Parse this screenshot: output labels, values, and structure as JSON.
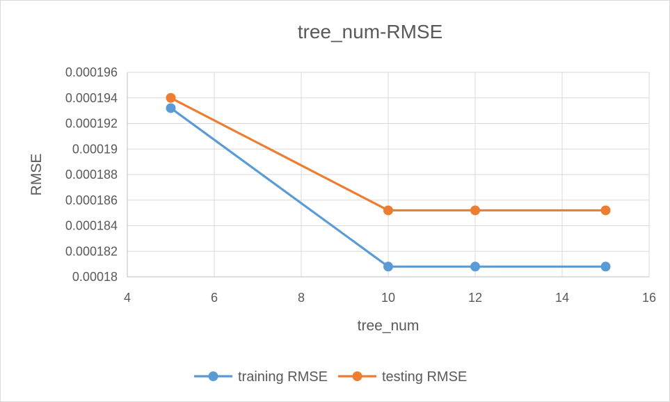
{
  "chart_data": {
    "type": "line",
    "title": "tree_num-RMSE",
    "xlabel": "tree_num",
    "ylabel": "RMSE",
    "xlim": [
      4,
      16
    ],
    "ylim": [
      0.00018,
      0.000196
    ],
    "x_ticks": [
      4,
      6,
      8,
      10,
      12,
      14,
      16
    ],
    "y_ticks": [
      "0.00018",
      "0.000182",
      "0.000184",
      "0.000186",
      "0.000188",
      "0.00019",
      "0.000192",
      "0.000194",
      "0.000196"
    ],
    "grid": true,
    "legend_position": "bottom",
    "series": [
      {
        "name": "training RMSE",
        "color": "#5b9bd5",
        "x": [
          5,
          10,
          12,
          15
        ],
        "y": [
          0.0001932,
          0.0001808,
          0.0001808,
          0.0001808
        ]
      },
      {
        "name": "testing RMSE",
        "color": "#ed7d31",
        "x": [
          5,
          10,
          12,
          15
        ],
        "y": [
          0.000194,
          0.0001852,
          0.0001852,
          0.0001852
        ]
      }
    ]
  }
}
